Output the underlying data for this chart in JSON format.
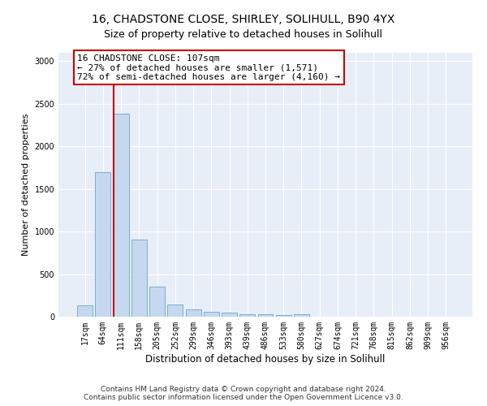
{
  "title_line1": "16, CHADSTONE CLOSE, SHIRLEY, SOLIHULL, B90 4YX",
  "title_line2": "Size of property relative to detached houses in Solihull",
  "xlabel": "Distribution of detached houses by size in Solihull",
  "ylabel": "Number of detached properties",
  "bar_labels": [
    "17sqm",
    "64sqm",
    "111sqm",
    "158sqm",
    "205sqm",
    "252sqm",
    "299sqm",
    "346sqm",
    "393sqm",
    "439sqm",
    "486sqm",
    "533sqm",
    "580sqm",
    "627sqm",
    "674sqm",
    "721sqm",
    "768sqm",
    "815sqm",
    "862sqm",
    "909sqm",
    "956sqm"
  ],
  "bar_values": [
    130,
    1700,
    2380,
    910,
    350,
    140,
    85,
    55,
    45,
    30,
    25,
    20,
    30,
    0,
    0,
    0,
    0,
    0,
    0,
    0,
    0
  ],
  "bar_color": "#c5d8f0",
  "bar_edge_color": "#7aadd4",
  "vline_color": "#cc0000",
  "annotation_box_text": "16 CHADSTONE CLOSE: 107sqm\n← 27% of detached houses are smaller (1,571)\n72% of semi-detached houses are larger (4,160) →",
  "annotation_box_color": "#ffffff",
  "annotation_box_edge_color": "#cc0000",
  "ylim": [
    0,
    3100
  ],
  "yticks": [
    0,
    500,
    1000,
    1500,
    2000,
    2500,
    3000
  ],
  "background_color": "#e8eef8",
  "footer_line1": "Contains HM Land Registry data © Crown copyright and database right 2024.",
  "footer_line2": "Contains public sector information licensed under the Open Government Licence v3.0.",
  "title_fontsize": 10,
  "subtitle_fontsize": 9,
  "xlabel_fontsize": 8.5,
  "ylabel_fontsize": 8,
  "tick_fontsize": 7,
  "annotation_fontsize": 8
}
